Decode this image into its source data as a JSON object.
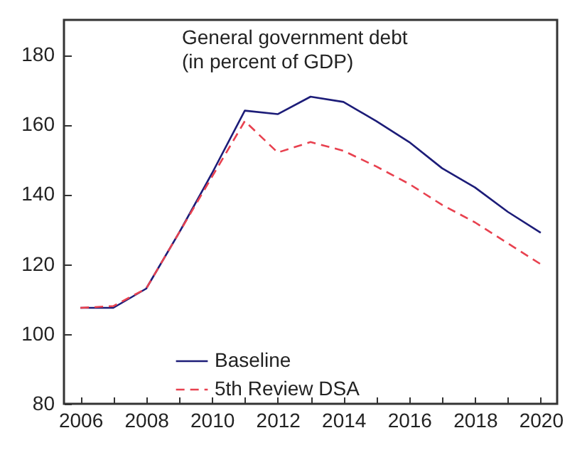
{
  "chart_data": {
    "type": "line",
    "title": "General government debt",
    "subtitle": "(in percent of GDP)",
    "x": [
      2006,
      2007,
      2008,
      2009,
      2010,
      2011,
      2012,
      2013,
      2014,
      2015,
      2016,
      2017,
      2018,
      2019,
      2020
    ],
    "series": [
      {
        "name": "Baseline",
        "color": "#1c1c78",
        "line_style": "solid",
        "values": [
          107.5,
          107.5,
          113,
          129,
          146,
          164,
          163,
          168,
          166.5,
          161,
          155,
          147.5,
          142,
          135,
          129
        ]
      },
      {
        "name": "5th Review DSA",
        "color": "#e8414f",
        "line_style": "dashed",
        "values": [
          107.5,
          108,
          113,
          129,
          145,
          161,
          152,
          155,
          152.5,
          148,
          143,
          137,
          132,
          126,
          120
        ]
      }
    ],
    "xlim": [
      2005.5,
      2020.5
    ],
    "xticks": [
      2006,
      {
        "value": 2007,
        "label": null
      },
      2008,
      {
        "value": 2009,
        "label": null
      },
      2010,
      {
        "value": 2011,
        "label": null
      },
      2012,
      {
        "value": 2013,
        "label": null
      },
      2014,
      {
        "value": 2015,
        "label": null
      },
      2016,
      {
        "value": 2017,
        "label": null
      },
      2018,
      {
        "value": 2019,
        "label": null
      },
      2020
    ],
    "ylim": [
      80,
      190
    ],
    "yticks": [
      80,
      100,
      120,
      140,
      160,
      180
    ],
    "grid": false,
    "legend": "bottom left",
    "marker": "none"
  }
}
